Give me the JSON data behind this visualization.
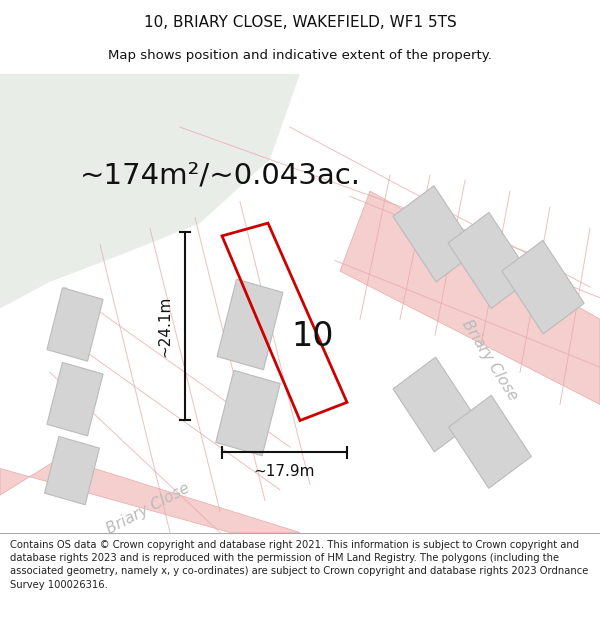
{
  "title": "10, BRIARY CLOSE, WAKEFIELD, WF1 5TS",
  "subtitle": "Map shows position and indicative extent of the property.",
  "area_label": "~174m²/~0.043ac.",
  "property_number": "10",
  "width_label": "~17.9m",
  "height_label": "~24.1m",
  "footer": "Contains OS data © Crown copyright and database right 2021. This information is subject to Crown copyright and database rights 2023 and is reproduced with the permission of HM Land Registry. The polygons (including the associated geometry, namely x, y co-ordinates) are subject to Crown copyright and database rights 2023 Ordnance Survey 100026316.",
  "map_bg": "#f0efed",
  "green_area_color": "#e8ede8",
  "road_color": "#f5cece",
  "road_edge_color": "#e8aaaa",
  "building_color": "#d4d4d4",
  "building_edge_color": "#bbbbbb",
  "property_outline_color": "#cc0000",
  "dim_line_color": "#111111",
  "text_color": "#111111",
  "road_label_color": "#bbbbbb",
  "title_fontsize": 11,
  "subtitle_fontsize": 9.5,
  "area_fontsize": 21,
  "prop_num_fontsize": 24,
  "dim_fontsize": 11,
  "footer_fontsize": 7.2,
  "road_label_fontsize": 11
}
